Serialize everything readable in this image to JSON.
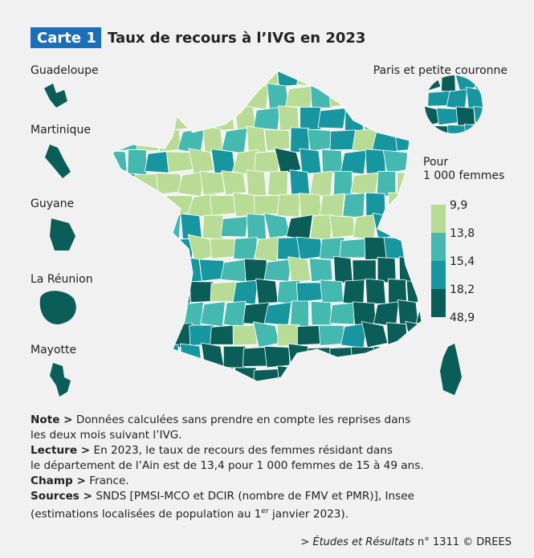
{
  "header": {
    "tag": "Carte 1",
    "title": "Taux de recours à l’IVG en 2023"
  },
  "territories": {
    "guadeloupe": "Guadeloupe",
    "martinique": "Martinique",
    "guyane": "Guyane",
    "reunion": "La Réunion",
    "mayotte": "Mayotte",
    "paris": "Paris et petite couronne"
  },
  "legend": {
    "title": [
      "Pour",
      "1 000 femmes"
    ],
    "labels": [
      "9,9",
      "13,8",
      "15,4",
      "18,2",
      "48,9"
    ]
  },
  "notes": [
    {
      "label": "Note >",
      "lines": [
        "Données calculées sans prendre en compte les reprises dans",
        "les deux mois suivant l’IVG."
      ]
    },
    {
      "label": "Lecture >",
      "lines": [
        "En 2023, le taux de recours des femmes résidant dans",
        "le département de l’Ain est de 13,4 pour 1 000 femmes de 15 à 49 ans."
      ]
    },
    {
      "label": "Champ >",
      "lines": [
        "France."
      ]
    },
    {
      "label": "Sources >",
      "lines": [
        "SNDS [PMSI-MCO et DCIR (nombre de FMV et PMR)], Insee",
        "(estimations localisées de population au 1"
      ],
      "sup": "er",
      "after": "janvier 2023)."
    }
  ],
  "footer": {
    "prefix": ">",
    "source": "Études et Résultats",
    "rest": "n° 1311 © DREES"
  }
}
